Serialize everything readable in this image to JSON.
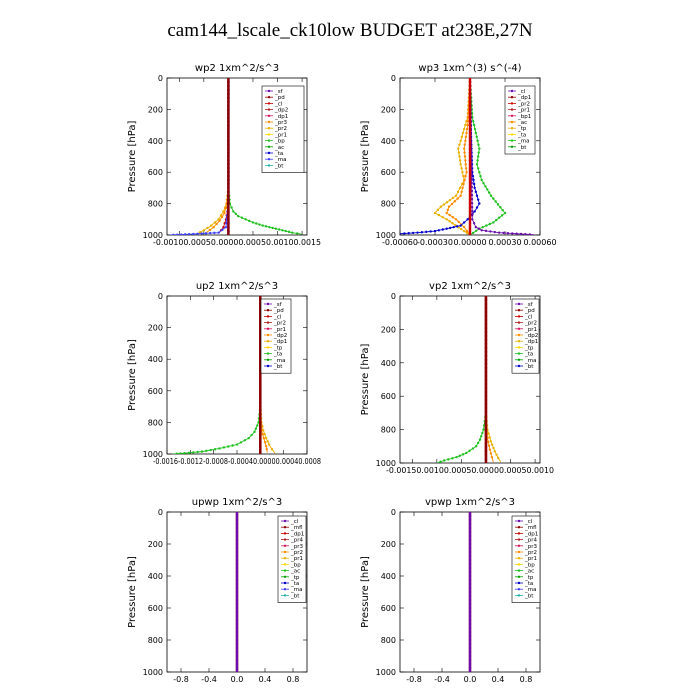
{
  "title": "cam144_lscale_ck10low  BUDGET at238E,27N",
  "chart_data": [
    {
      "type": "line",
      "title": "wp2   1xm^2/s^3",
      "ylabel": "Pressure [hPa]",
      "ylim": [
        1000,
        0
      ],
      "yticks": [
        "0",
        "200",
        "400",
        "600",
        "800",
        "1000"
      ],
      "xlim": [
        -0.00125,
        0.0016
      ],
      "xticks": [
        {
          "v": -0.001,
          "label": "-0.0010"
        },
        {
          "v": -0.0005,
          "label": "-0.0005"
        },
        {
          "v": 0.0,
          "label": "0.0000"
        },
        {
          "v": 0.0005,
          "label": "0.0005"
        },
        {
          "v": 0.001,
          "label": "0.0010"
        },
        {
          "v": 0.0015,
          "label": "0.0015"
        }
      ],
      "xtick_string": "-0.00100.00050.00000.00050.00100.0015",
      "legend": [
        "_sf",
        "_pd",
        "_cl",
        "_dp2",
        "_dp1",
        "_pr3",
        "_pr2",
        "_pr1",
        "_bp",
        "_ac",
        "_ta",
        "_ma",
        "_bt"
      ],
      "series": [
        {
          "color": "#e8b000",
          "x": [
            0,
            0,
            0,
            0,
            -4e-05,
            -0.0001,
            -0.0002,
            -0.00035,
            -0.0005,
            -0.00065
          ],
          "y": [
            0,
            200,
            400,
            700,
            800,
            850,
            900,
            940,
            970,
            995
          ]
        },
        {
          "color": "#ff8c00",
          "x": [
            0,
            0,
            0,
            -3e-05,
            -8e-05,
            -0.00018,
            -0.0003,
            -0.00045
          ],
          "y": [
            0,
            400,
            700,
            800,
            860,
            910,
            950,
            985
          ]
        },
        {
          "color": "#cc0000",
          "x": [
            0,
            0,
            0,
            -2e-05,
            -5e-05,
            -0.0001,
            -0.0002
          ],
          "y": [
            0,
            400,
            750,
            850,
            900,
            950,
            990
          ]
        },
        {
          "color": "#4040ff",
          "x": [
            0,
            0,
            -5e-05,
            -0.0002,
            -0.0008,
            -0.0012
          ],
          "y": [
            0,
            800,
            950,
            985,
            995,
            1000
          ]
        },
        {
          "color": "#20c020",
          "x": [
            0,
            0,
            3e-05,
            0.0001,
            0.0002,
            0.00035,
            0.0005,
            0.0007,
            0.0009,
            0.0011,
            0.0013,
            0.0015
          ],
          "y": [
            0,
            700,
            800,
            850,
            880,
            900,
            920,
            940,
            955,
            970,
            985,
            995
          ]
        },
        {
          "color": "#6a0dad",
          "x": [
            0,
            0,
            0
          ],
          "y": [
            0,
            500,
            1000
          ]
        },
        {
          "color": "#8b0000",
          "x": [
            0,
            0,
            0
          ],
          "y": [
            0,
            500,
            1000
          ]
        }
      ]
    },
    {
      "type": "line",
      "title": "wp3   1xm^(3) s^(-4)",
      "ylabel": "Pressure [hPa]",
      "ylim": [
        1000,
        0
      ],
      "yticks": [
        "0",
        "200",
        "400",
        "600",
        "800",
        "1000"
      ],
      "xlim": [
        -0.0006,
        0.0006
      ],
      "xticks": [
        {
          "v": -0.0006,
          "label": "-0.00060"
        },
        {
          "v": -0.0003,
          "label": "-0.00030"
        },
        {
          "v": 0.0,
          "label": "0.00000"
        },
        {
          "v": 0.0003,
          "label": "0.00030"
        },
        {
          "v": 0.0006,
          "label": "0.00060"
        }
      ],
      "legend": [
        "_cl",
        "_dp1",
        "_pr2",
        "_pr1",
        "_bp1",
        "_ac",
        "_tp",
        "_ta",
        "_ma",
        "_bt"
      ],
      "series": [
        {
          "color": "#e8b000",
          "x": [
            0,
            -2e-05,
            -6e-05,
            -0.0001,
            -8e-05,
            -5e-05,
            -0.00012,
            -0.00025,
            -0.0003,
            -0.0002,
            -0.0001,
            0
          ],
          "y": [
            0,
            250,
            350,
            450,
            550,
            650,
            750,
            820,
            860,
            900,
            950,
            1000
          ]
        },
        {
          "color": "#ff8c00",
          "x": [
            0,
            -2e-05,
            -5e-05,
            -3e-05,
            -8e-05,
            -0.00018,
            -0.0002,
            -0.00012,
            -5e-05,
            0
          ],
          "y": [
            0,
            300,
            450,
            600,
            750,
            820,
            860,
            900,
            950,
            1000
          ]
        },
        {
          "color": "#20c020",
          "x": [
            0,
            2e-05,
            5e-05,
            8e-05,
            6e-05,
            0.0001,
            0.00018,
            0.0003,
            0.0002,
            8e-05,
            0
          ],
          "y": [
            0,
            250,
            350,
            450,
            550,
            650,
            750,
            860,
            920,
            960,
            1000
          ]
        },
        {
          "color": "#0000cc",
          "x": [
            0,
            1e-05,
            2e-05,
            4e-05,
            8e-05,
            4e-05,
            -2e-05,
            -8e-05,
            -0.0002,
            -0.0003,
            -0.00045,
            -0.0006
          ],
          "y": [
            0,
            400,
            600,
            700,
            800,
            850,
            900,
            940,
            960,
            975,
            985,
            992
          ]
        },
        {
          "color": "#6a0dad",
          "x": [
            0,
            2e-05,
            5e-05,
            0.0001,
            0.00025,
            0.0004,
            0.00055
          ],
          "y": [
            0,
            900,
            950,
            970,
            985,
            992,
            998
          ]
        },
        {
          "color": "#cc0000",
          "x": [
            0,
            0,
            0
          ],
          "y": [
            0,
            500,
            1000
          ]
        }
      ]
    },
    {
      "type": "line",
      "title": "up2   1xm^2/s^3",
      "ylabel": "Pressure [hPa]",
      "ylim": [
        1000,
        0
      ],
      "yticks": [
        "0",
        "200",
        "400",
        "600",
        "800",
        "1000"
      ],
      "xlim": [
        -0.0016,
        0.0008
      ],
      "xticks": [
        {
          "v": -0.0016,
          "label": "-0.0016"
        },
        {
          "v": -0.0012,
          "label": "-0.0012"
        },
        {
          "v": -0.0008,
          "label": "-0.0008"
        },
        {
          "v": -0.0004,
          "label": "-0.0004"
        },
        {
          "v": 0.0,
          "label": "0.0000"
        },
        {
          "v": 0.0004,
          "label": "0.0004"
        },
        {
          "v": 0.0008,
          "label": "0.0008"
        }
      ],
      "xtick_string": "-0.0016-0.0012-0.0008-0.00040.00000.00040.0008",
      "legend": [
        "_sf",
        "_pd",
        "_cl",
        "_pr2",
        "_pr1",
        "_dp2",
        "_dp1",
        "_tp",
        "_ta",
        "_ma",
        "_bt"
      ],
      "series": [
        {
          "color": "#e8b000",
          "x": [
            0,
            0,
            2e-05,
            5e-05,
            0.0001,
            0.00015,
            0.0002,
            0.00025
          ],
          "y": [
            0,
            700,
            800,
            850,
            900,
            940,
            970,
            995
          ]
        },
        {
          "color": "#ff8c00",
          "x": [
            0,
            0,
            2e-05,
            6e-05,
            0.0001,
            0.00012
          ],
          "y": [
            0,
            750,
            850,
            900,
            950,
            990
          ]
        },
        {
          "color": "#20c020",
          "x": [
            0,
            0,
            -3e-05,
            -0.0001,
            -0.0002,
            -0.0004,
            -0.0007,
            -0.001,
            -0.0013,
            -0.0015
          ],
          "y": [
            0,
            700,
            800,
            860,
            900,
            940,
            965,
            985,
            995,
            1000
          ]
        },
        {
          "color": "#cc0000",
          "x": [
            0,
            0,
            0
          ],
          "y": [
            0,
            500,
            1000
          ]
        },
        {
          "color": "#8b0000",
          "x": [
            0,
            0,
            0
          ],
          "y": [
            0,
            500,
            1000
          ]
        }
      ]
    },
    {
      "type": "line",
      "title": "vp2   1xm^2/s^3",
      "ylabel": "Pressure [hPa]",
      "ylim": [
        1000,
        0
      ],
      "yticks": [
        "0",
        "200",
        "400",
        "600",
        "800",
        "1000"
      ],
      "xlim": [
        -0.00175,
        0.0011
      ],
      "xticks": [
        {
          "v": -0.0015,
          "label": "-0.0015"
        },
        {
          "v": -0.001,
          "label": "-0.0010"
        },
        {
          "v": -0.0005,
          "label": "-0.0005"
        },
        {
          "v": 0.0,
          "label": "0.0000"
        },
        {
          "v": 0.0005,
          "label": "0.0005"
        },
        {
          "v": 0.001,
          "label": "0.0010"
        }
      ],
      "xtick_string": "-0.00150.00100.00050.00000.00050.0010",
      "legend": [
        "_sf",
        "_pd",
        "_cl",
        "_pr2",
        "_pr1",
        "_dp2",
        "_dp1",
        "_tp",
        "_ta",
        "_ma",
        "_bt"
      ],
      "series": [
        {
          "color": "#e8b000",
          "x": [
            0,
            0,
            3e-05,
            0.0001,
            0.00018,
            0.00025,
            0.0003
          ],
          "y": [
            0,
            700,
            800,
            870,
            930,
            970,
            995
          ]
        },
        {
          "color": "#ff8c00",
          "x": [
            0,
            0,
            3e-05,
            8e-05,
            0.00012,
            0.00015
          ],
          "y": [
            0,
            750,
            850,
            920,
            965,
            995
          ]
        },
        {
          "color": "#20c020",
          "x": [
            0,
            0,
            -5e-05,
            -0.00012,
            -0.0002,
            -0.0004,
            -0.0006,
            -0.00085,
            -0.001
          ],
          "y": [
            0,
            700,
            800,
            860,
            900,
            940,
            965,
            985,
            1000
          ]
        },
        {
          "color": "#cc0000",
          "x": [
            0,
            0,
            0
          ],
          "y": [
            0,
            500,
            1000
          ]
        },
        {
          "color": "#8b0000",
          "x": [
            0,
            0,
            0
          ],
          "y": [
            0,
            500,
            1000
          ]
        }
      ]
    },
    {
      "type": "line",
      "title": "upwp   1xm^2/s^3",
      "ylabel": "Pressure [hPa]",
      "ylim": [
        1000,
        0
      ],
      "yticks": [
        "0",
        "200",
        "400",
        "600",
        "800",
        "1000"
      ],
      "xlim": [
        -1,
        1
      ],
      "xticks": [
        {
          "v": -0.8,
          "label": "-0.8"
        },
        {
          "v": -0.4,
          "label": "-0.4"
        },
        {
          "v": 0.0,
          "label": "0.0"
        },
        {
          "v": 0.4,
          "label": "0.4"
        },
        {
          "v": 0.8,
          "label": "0.8"
        }
      ],
      "legend": [
        "_cl",
        "_mfl",
        "_dp1",
        "_pr4",
        "_pr3",
        "_pr2",
        "_pr1",
        "_bp",
        "_ac",
        "_tp",
        "_ta",
        "_ma",
        "_bt"
      ],
      "series": [
        {
          "color": "#cc0000",
          "x": [
            0,
            0,
            0
          ],
          "y": [
            0,
            500,
            1000
          ]
        },
        {
          "color": "#6a0dad",
          "x": [
            0,
            0,
            0
          ],
          "y": [
            0,
            500,
            1000
          ]
        }
      ]
    },
    {
      "type": "line",
      "title": "vpwp   1xm^2/s^3",
      "ylabel": "Pressure [hPa]",
      "ylim": [
        1000,
        0
      ],
      "yticks": [
        "0",
        "200",
        "400",
        "600",
        "800",
        "1000"
      ],
      "xlim": [
        -1,
        1
      ],
      "xticks": [
        {
          "v": -0.8,
          "label": "-0.8"
        },
        {
          "v": -0.4,
          "label": "-0.4"
        },
        {
          "v": 0.0,
          "label": "0.0"
        },
        {
          "v": 0.4,
          "label": "0.4"
        },
        {
          "v": 0.8,
          "label": "0.8"
        }
      ],
      "legend": [
        "_cl",
        "_mfl",
        "_dp1",
        "_pr4",
        "_pr3",
        "_pr2",
        "_pr1",
        "_bp",
        "_ac",
        "_tp",
        "_ta",
        "_ma",
        "_bt"
      ],
      "series": [
        {
          "color": "#cc0000",
          "x": [
            0,
            0,
            0
          ],
          "y": [
            0,
            500,
            1000
          ]
        },
        {
          "color": "#6a0dad",
          "x": [
            0,
            0,
            0
          ],
          "y": [
            0,
            500,
            1000
          ]
        }
      ]
    }
  ]
}
